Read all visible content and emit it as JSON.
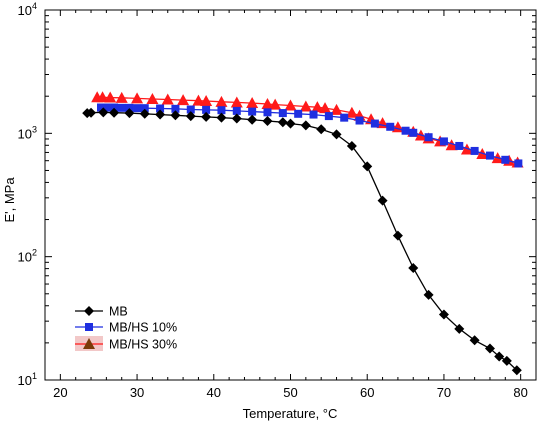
{
  "chart_data": {
    "type": "line",
    "title": "",
    "xlabel": "Temperature,  °C",
    "ylabel": "E', MPa",
    "xlim": [
      18,
      82
    ],
    "ylim": [
      10,
      10000
    ],
    "yscale": "log",
    "x_ticks": [
      "20",
      "30",
      "40",
      "50",
      "60",
      "70",
      "80"
    ],
    "y_ticks": [
      {
        "base": "10",
        "exp": "1",
        "value": 10
      },
      {
        "base": "10",
        "exp": "2",
        "value": 100
      },
      {
        "base": "10",
        "exp": "3",
        "value": 1000
      },
      {
        "base": "10",
        "exp": "4",
        "value": 10000
      }
    ],
    "grid": false,
    "legend_position": "bottom-left",
    "series": [
      {
        "name": "MB",
        "color": "#000000",
        "marker": "diamond",
        "x": [
          23.5,
          24.0,
          25.6,
          27.0,
          29.0,
          31.0,
          33.0,
          35.0,
          37.0,
          39.0,
          41.0,
          43.0,
          45.0,
          47.0,
          49.0,
          50.0,
          52.0,
          54.0,
          56.0,
          58.0,
          60.0,
          62.0,
          64.0,
          66.0,
          68.0,
          70.0,
          72.0,
          74.0,
          76.0,
          77.2,
          78.2,
          79.5
        ],
        "y": [
          1460,
          1470,
          1480,
          1470,
          1460,
          1440,
          1420,
          1400,
          1380,
          1360,
          1340,
          1320,
          1290,
          1260,
          1230,
          1200,
          1160,
          1080,
          980,
          790,
          540,
          285,
          148,
          81,
          49,
          34,
          26,
          21,
          18,
          15.5,
          14.3,
          12.0
        ]
      },
      {
        "name": "MB/HS 10%",
        "color": "#1f2fe0",
        "marker": "square",
        "x": [
          25.3,
          26.0,
          27.0,
          28.0,
          29.0,
          30.0,
          31.0,
          33.0,
          35.0,
          37.0,
          39.0,
          41.0,
          43.0,
          45.0,
          47.0,
          49.0,
          51.0,
          53.0,
          55.0,
          57.0,
          59.0,
          61.0,
          63.0,
          65.0,
          66.0,
          68.0,
          70.0,
          72.0,
          74.0,
          76.0,
          78.0,
          79.7
        ],
        "y": [
          1620,
          1620,
          1620,
          1610,
          1610,
          1600,
          1600,
          1590,
          1580,
          1560,
          1550,
          1540,
          1520,
          1500,
          1480,
          1460,
          1440,
          1420,
          1380,
          1340,
          1270,
          1200,
          1130,
          1050,
          1010,
          930,
          860,
          790,
          720,
          660,
          610,
          570
        ]
      },
      {
        "name": "MB/HS 30%",
        "color": "#ff1a1a",
        "marker": "triangle",
        "x": [
          24.8,
          25.5,
          26.5,
          28.0,
          30.0,
          32.0,
          34.0,
          36.0,
          38.0,
          39.0,
          41.0,
          43.0,
          45.0,
          47.0,
          48.0,
          50.0,
          52.0,
          53.5,
          54.5,
          56.0,
          58.0,
          59.0,
          60.5,
          62.0,
          64.0,
          66.0,
          67.0,
          68.0,
          69.5,
          71.0,
          73.0,
          75.0,
          77.0,
          78.5,
          79.6
        ],
        "y": [
          1960,
          1960,
          1950,
          1940,
          1920,
          1900,
          1880,
          1860,
          1840,
          1830,
          1800,
          1780,
          1760,
          1730,
          1710,
          1680,
          1650,
          1630,
          1600,
          1550,
          1470,
          1390,
          1300,
          1210,
          1120,
          1030,
          960,
          910,
          860,
          800,
          740,
          680,
          630,
          600,
          580
        ]
      }
    ],
    "legend_patch_color": "#f2c8c8",
    "legend_triangle_color": "#7a3a08"
  }
}
